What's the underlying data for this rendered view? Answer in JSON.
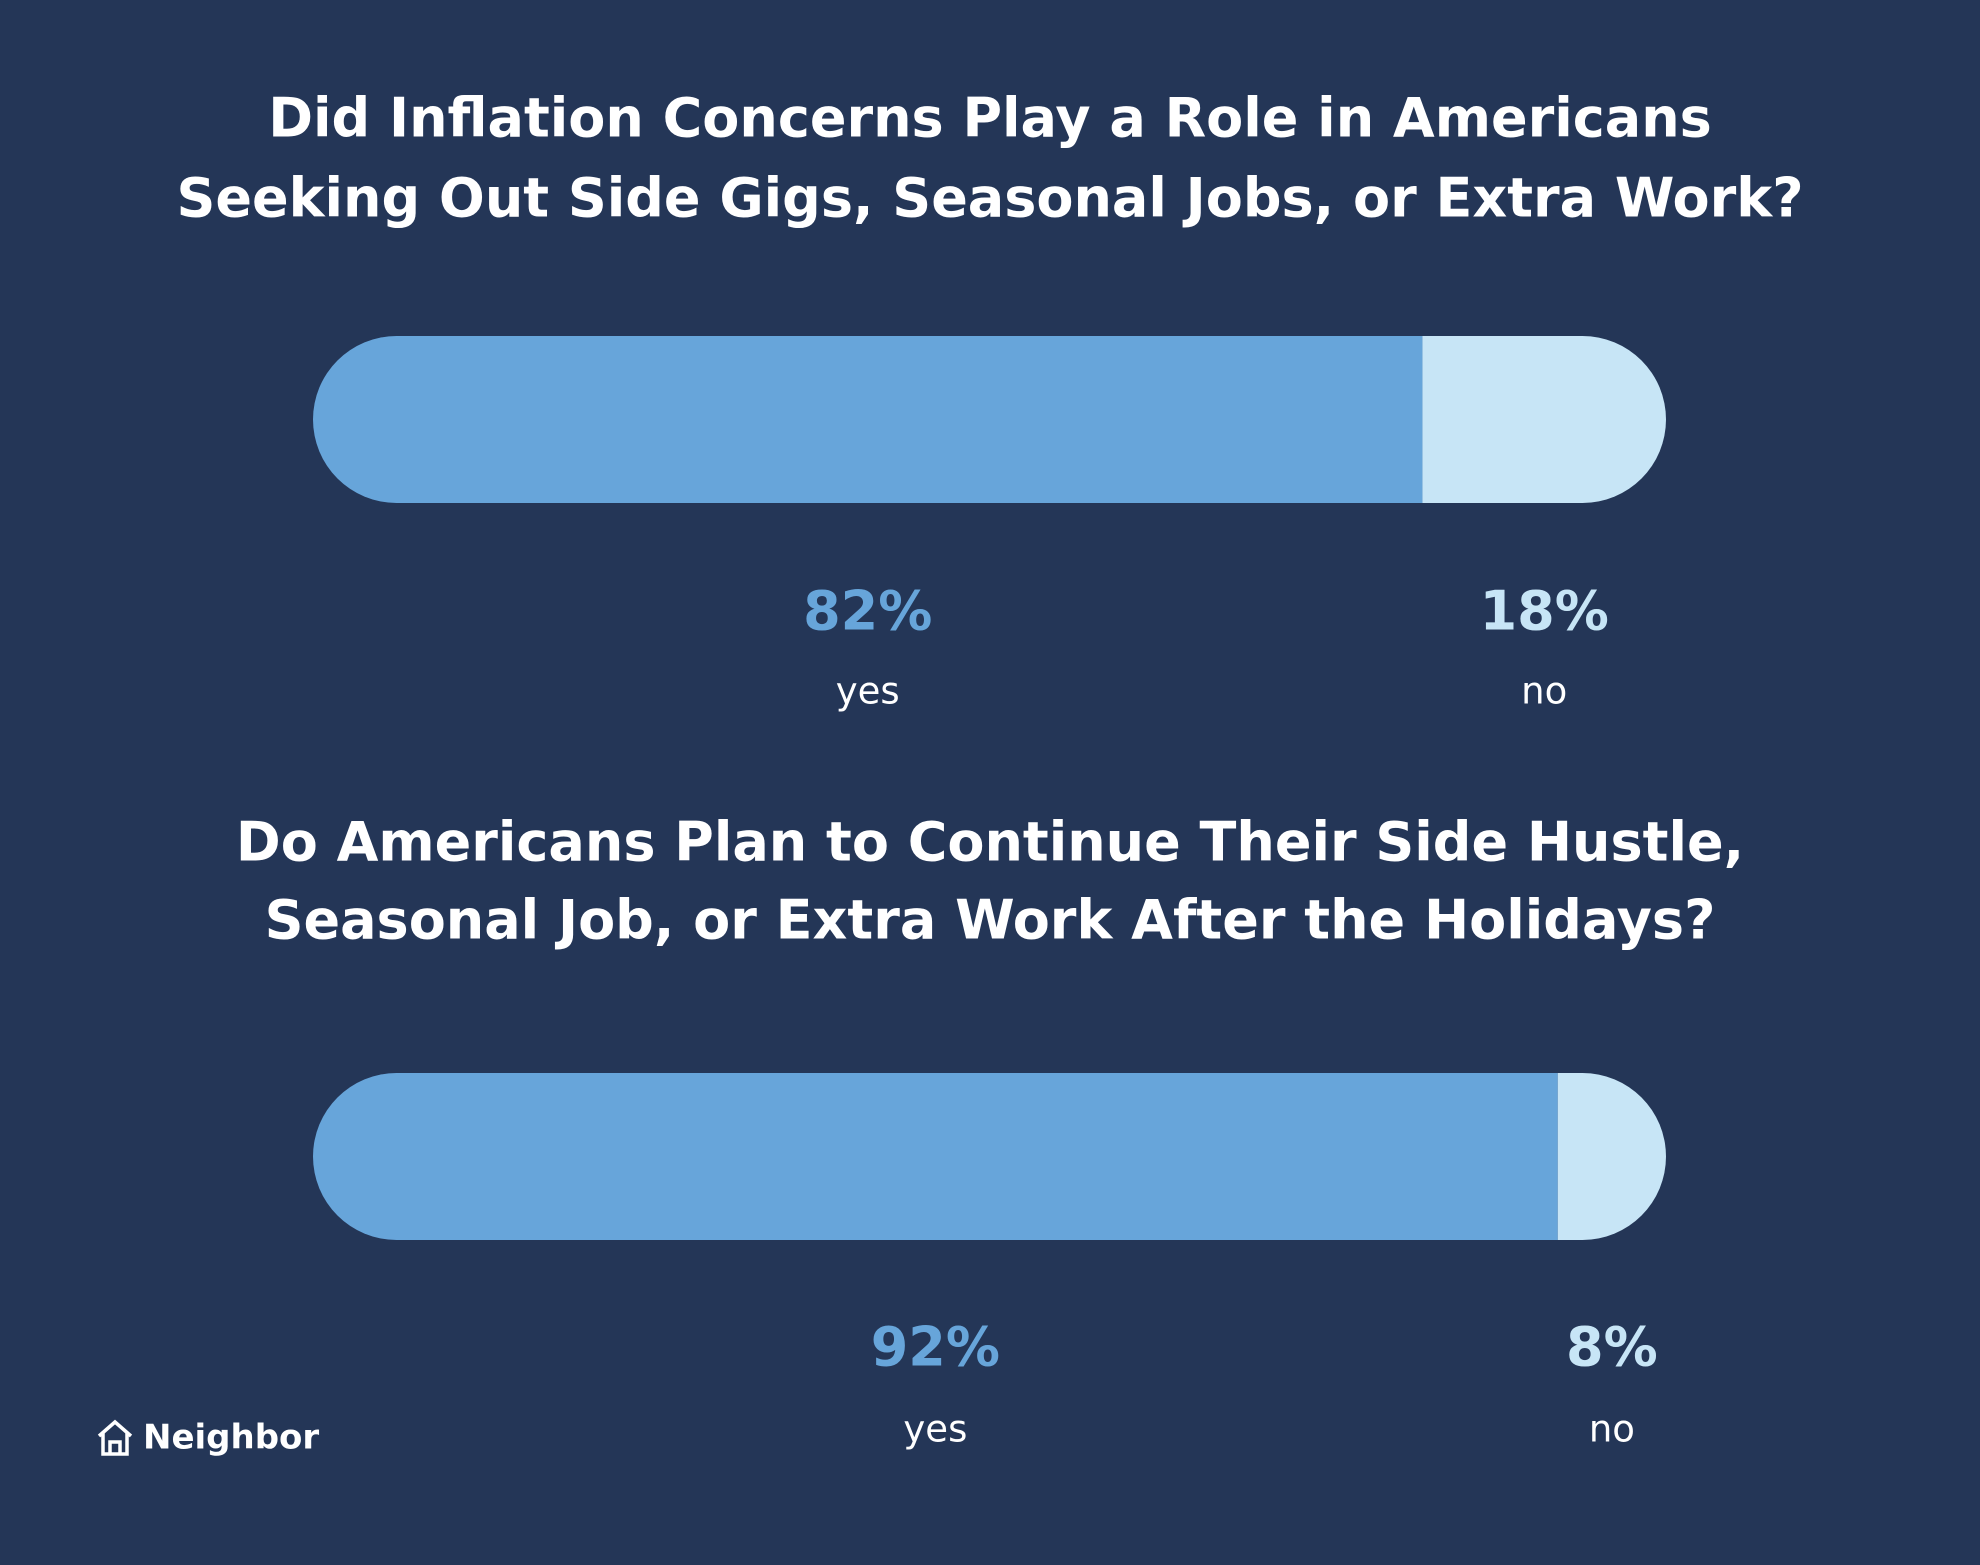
{
  "chart_data": [
    {
      "type": "bar",
      "title": [
        "Did Inflation Concerns Play a Role in Americans",
        "Seeking Out Side Gigs, Seasonal Jobs, or Extra Work?"
      ],
      "xlim": [
        0,
        100
      ],
      "series": [
        {
          "name": "yes",
          "color": "#67a5da",
          "values": [
            82
          ],
          "value_labels": [
            "82%"
          ]
        },
        {
          "name": "no",
          "color": "#c7e5f6",
          "values": [
            18
          ],
          "value_labels": [
            "18%"
          ]
        }
      ]
    },
    {
      "type": "bar",
      "title": [
        "Do Americans Plan to Continue Their Side Hustle,",
        "Seasonal Job, or Extra Work After the Holidays?"
      ],
      "xlim": [
        0,
        100
      ],
      "series": [
        {
          "name": "yes",
          "color": "#67a5da",
          "values": [
            92
          ],
          "value_labels": [
            "92%"
          ]
        },
        {
          "name": "no",
          "color": "#c7e5f6",
          "values": [
            8
          ],
          "value_labels": [
            "8%"
          ]
        }
      ]
    }
  ],
  "brand": "Neighbor"
}
